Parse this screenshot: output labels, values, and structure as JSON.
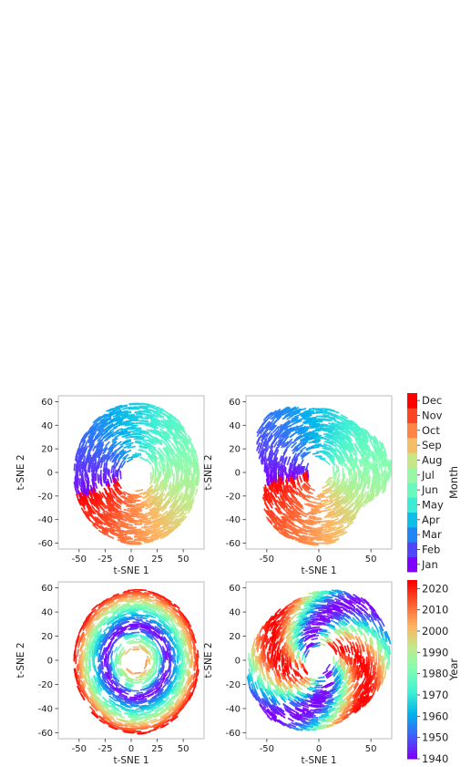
{
  "chart_data": [
    {
      "type": "scatter",
      "xlabel": "t-SNE 1",
      "ylabel": "t-SNE 2",
      "xlim": [
        -70,
        70
      ],
      "ylim": [
        -65,
        65
      ],
      "xticks": [
        -50,
        -25,
        0,
        25,
        50
      ],
      "yticks": [
        -60,
        -40,
        -20,
        0,
        20,
        40,
        60
      ],
      "color_by": "Month",
      "shape": "ring, month encoded by angle",
      "center": [
        5,
        -1
      ],
      "inner_radius": 12,
      "outer_radius": 60,
      "legend": "colorbar right"
    },
    {
      "type": "scatter",
      "xlabel": "t-SNE 1",
      "ylabel": "t-SNE 2",
      "xlim": [
        -70,
        70
      ],
      "ylim": [
        -65,
        65
      ],
      "xticks": [
        -50,
        0,
        50
      ],
      "yticks": [
        -60,
        -40,
        -20,
        0,
        20,
        40,
        60
      ],
      "color_by": "Month",
      "shape": "irregular ring, month encoded by angle",
      "center": [
        0,
        0
      ],
      "inner_radius": 10,
      "outer_radius": 58,
      "legend": "colorbar right"
    },
    {
      "type": "scatter",
      "xlabel": "t-SNE 1",
      "ylabel": "t-SNE 2",
      "xlim": [
        -70,
        70
      ],
      "ylim": [
        -65,
        65
      ],
      "xticks": [
        -50,
        -25,
        0,
        25,
        50
      ],
      "yticks": [
        -60,
        -40,
        -20,
        0,
        20,
        40,
        60
      ],
      "color_by": "Year",
      "shape": "concentric rings, year encoded by radius",
      "center": [
        5,
        -1
      ],
      "inner_radius": 8,
      "outer_radius": 60,
      "legend": "colorbar right"
    },
    {
      "type": "scatter",
      "xlabel": "t-SNE 1",
      "ylabel": "t-SNE 2",
      "xlim": [
        -70,
        70
      ],
      "ylim": [
        -65,
        65
      ],
      "xticks": [
        -50,
        0,
        50
      ],
      "yticks": [
        -60,
        -40,
        -20,
        0,
        20,
        40,
        60
      ],
      "color_by": "Year",
      "shape": "twisted loop, year encoded along the band",
      "center": [
        0,
        0
      ],
      "inner_radius": 10,
      "outer_radius": 60,
      "legend": "colorbar right"
    }
  ],
  "colorbars": [
    {
      "label": "Month",
      "ticks": [
        "Jan",
        "Feb",
        "Mar",
        "Apr",
        "May",
        "Jun",
        "Jul",
        "Aug",
        "Sep",
        "Oct",
        "Nov",
        "Dec"
      ],
      "colormap": "rainbow",
      "discrete": true
    },
    {
      "label": "Year",
      "ticks": [
        "1940",
        "1950",
        "1960",
        "1970",
        "1980",
        "1990",
        "2000",
        "2010",
        "2020"
      ],
      "range": [
        1940,
        2024
      ],
      "colormap": "rainbow",
      "discrete": false
    }
  ],
  "style": {
    "frame_color": "#bbbbbb",
    "text_color": "#222222",
    "colormap_stops": [
      "#8000ff",
      "#3f5ffa",
      "#01b3eb",
      "#41f1d4",
      "#80feb3",
      "#c0eb8c",
      "#ffb360",
      "#ff5f30",
      "#ff0000"
    ]
  }
}
